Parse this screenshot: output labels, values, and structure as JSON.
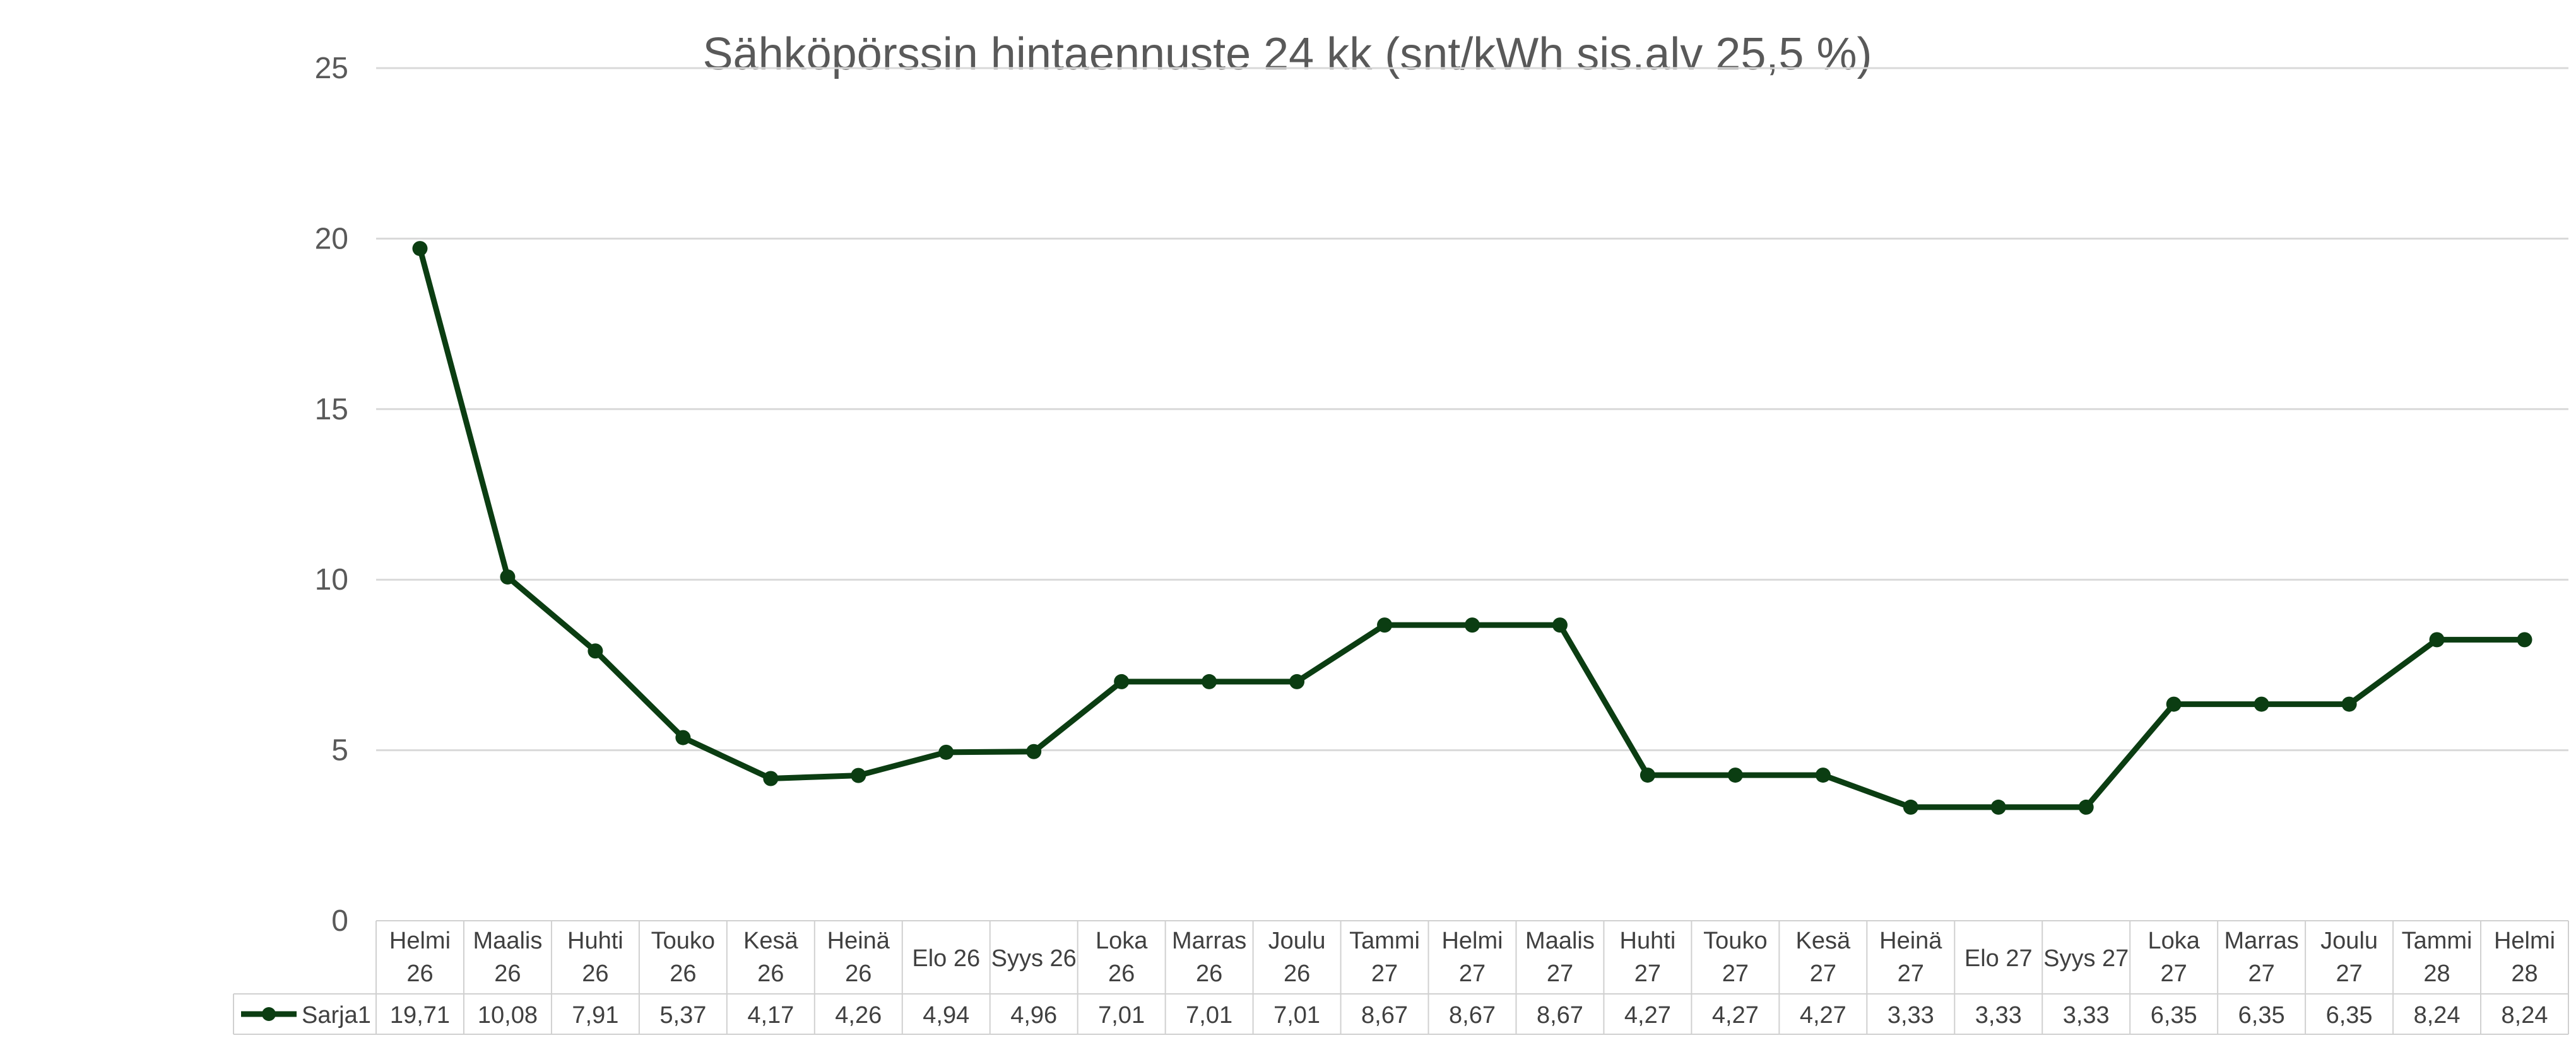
{
  "chart_data": {
    "type": "line",
    "title": "Sähköpörssin hintaennuste 24 kk (snt/kWh sis.alv 25,5 %)",
    "xlabel": "",
    "ylabel": "",
    "ylim": [
      0,
      25
    ],
    "yticks": [
      0,
      5,
      10,
      15,
      20,
      25
    ],
    "grid": true,
    "legend_position": "data-table-row",
    "categories": [
      [
        "Helmi",
        "26"
      ],
      [
        "Maalis",
        "26"
      ],
      [
        "Huhti",
        "26"
      ],
      [
        "Touko",
        "26"
      ],
      [
        "Kesä",
        "26"
      ],
      [
        "Heinä",
        "26"
      ],
      [
        "Elo 26"
      ],
      [
        "Syys 26"
      ],
      [
        "Loka",
        "26"
      ],
      [
        "Marras",
        "26"
      ],
      [
        "Joulu",
        "26"
      ],
      [
        "Tammi",
        "27"
      ],
      [
        "Helmi",
        "27"
      ],
      [
        "Maalis",
        "27"
      ],
      [
        "Huhti",
        "27"
      ],
      [
        "Touko",
        "27"
      ],
      [
        "Kesä",
        "27"
      ],
      [
        "Heinä",
        "27"
      ],
      [
        "Elo 27"
      ],
      [
        "Syys 27"
      ],
      [
        "Loka",
        "27"
      ],
      [
        "Marras",
        "27"
      ],
      [
        "Joulu",
        "27"
      ],
      [
        "Tammi",
        "28"
      ],
      [
        "Helmi",
        "28"
      ]
    ],
    "series": [
      {
        "name": "Sarja1",
        "color": "#0b3d12",
        "values": [
          19.71,
          10.08,
          7.91,
          5.37,
          4.17,
          4.26,
          4.94,
          4.96,
          7.01,
          7.01,
          7.01,
          8.67,
          8.67,
          8.67,
          4.27,
          4.27,
          4.27,
          3.33,
          3.33,
          3.33,
          6.35,
          6.35,
          6.35,
          8.24,
          8.24
        ],
        "value_labels": [
          "19,71",
          "10,08",
          "7,91",
          "5,37",
          "4,17",
          "4,26",
          "4,94",
          "4,96",
          "7,01",
          "7,01",
          "7,01",
          "8,67",
          "8,67",
          "8,67",
          "4,27",
          "4,27",
          "4,27",
          "3,33",
          "3,33",
          "3,33",
          "6,35",
          "6,35",
          "6,35",
          "8,24",
          "8,24"
        ]
      }
    ]
  }
}
